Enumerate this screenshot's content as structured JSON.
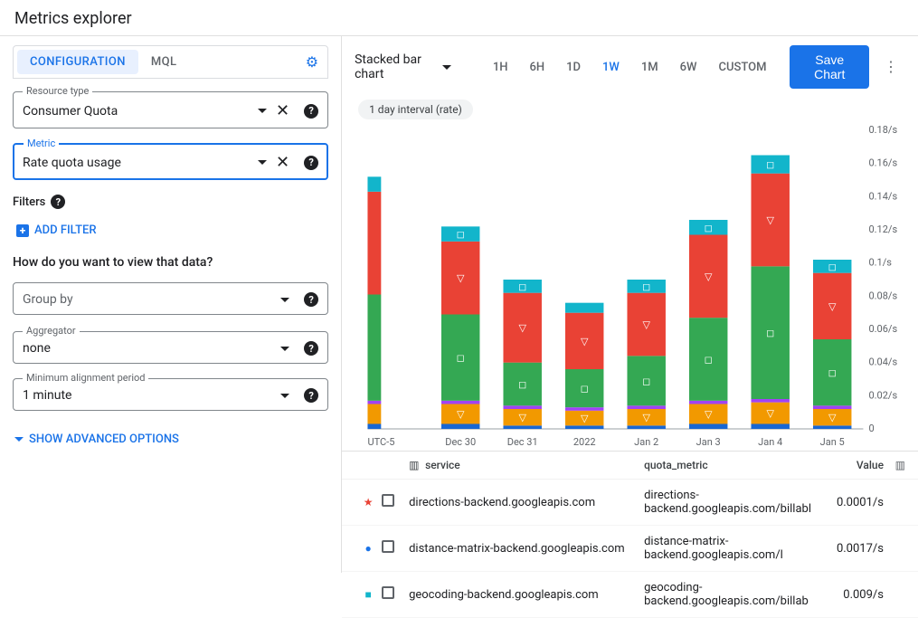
{
  "page_title": "Metrics explorer",
  "tabs": {
    "configuration": "CONFIGURATION",
    "mql": "MQL"
  },
  "fields": {
    "resource_type": {
      "label": "Resource type",
      "value": "Consumer Quota"
    },
    "metric": {
      "label": "Metric",
      "value": "Rate quota usage"
    },
    "group_by": {
      "placeholder": "Group by"
    },
    "aggregator": {
      "label": "Aggregator",
      "value": "none"
    },
    "min_alignment": {
      "label": "Minimum alignment period",
      "value": "1 minute"
    }
  },
  "labels": {
    "filters": "Filters",
    "add_filter": "ADD FILTER",
    "view_question": "How do you want to view that data?",
    "show_advanced": "SHOW ADVANCED OPTIONS"
  },
  "toolbar": {
    "chart_type": "Stacked bar chart",
    "ranges": [
      "1H",
      "6H",
      "1D",
      "1W",
      "1M",
      "6W",
      "CUSTOM"
    ],
    "active_range": "1W",
    "save": "Save Chart"
  },
  "chart": {
    "interval_chip": "1 day interval (rate)",
    "type": "stacked-bar",
    "x_labels": [
      "UTC-5",
      "Dec 30",
      "Dec 31",
      "2022",
      "Jan 2",
      "Jan 3",
      "Jan 4",
      "Jan 5"
    ],
    "y_max": 0.18,
    "y_ticks": [
      "0",
      "0.02/s",
      "0.04/s",
      "0.06/s",
      "0.08/s",
      "0.1/s",
      "0.12/s",
      "0.14/s",
      "0.16/s",
      "0.18/s"
    ],
    "colors": {
      "dark_blue": "#1967d2",
      "orange": "#f29900",
      "purple": "#a142f4",
      "green": "#34a853",
      "red": "#e94235",
      "teal": "#12b5cb"
    },
    "series_colors": [
      "#1967d2",
      "#f29900",
      "#a142f4",
      "#34a853",
      "#e94235",
      "#12b5cb"
    ],
    "bars": [
      {
        "x": 0,
        "stacks": [
          0.003,
          0.012,
          0.002,
          0.064,
          0.062,
          0.009
        ],
        "partial": true
      },
      {
        "x": 1,
        "stacks": [
          0.003,
          0.012,
          0.002,
          0.052,
          0.044,
          0.009
        ]
      },
      {
        "x": 2,
        "stacks": [
          0.002,
          0.01,
          0.002,
          0.026,
          0.042,
          0.008
        ]
      },
      {
        "x": 3,
        "stacks": [
          0.002,
          0.009,
          0.002,
          0.023,
          0.034,
          0.006
        ]
      },
      {
        "x": 4,
        "stacks": [
          0.002,
          0.01,
          0.002,
          0.03,
          0.038,
          0.008
        ]
      },
      {
        "x": 5,
        "stacks": [
          0.003,
          0.012,
          0.002,
          0.05,
          0.05,
          0.009
        ]
      },
      {
        "x": 6,
        "stacks": [
          0.003,
          0.013,
          0.002,
          0.08,
          0.056,
          0.011
        ]
      },
      {
        "x": 7,
        "stacks": [
          0.002,
          0.01,
          0.002,
          0.04,
          0.04,
          0.008
        ]
      }
    ],
    "markers": [
      "▽",
      "◻",
      "▽",
      "◻",
      "▽",
      "◻"
    ]
  },
  "legend": {
    "cols": {
      "service": "service",
      "quota": "quota_metric",
      "value": "Value"
    },
    "rows": [
      {
        "marker": "★",
        "marker_color": "#e94235",
        "service": "directions-backend.googleapis.com",
        "quota": "directions-backend.googleapis.com/billabl",
        "value": "0.0001/s"
      },
      {
        "marker": "●",
        "marker_color": "#1a73e8",
        "service": "distance-matrix-backend.googleapis.com",
        "quota": "distance-matrix-backend.googleapis.com/l",
        "value": "0.0017/s"
      },
      {
        "marker": "■",
        "marker_color": "#12b5cb",
        "service": "geocoding-backend.googleapis.com",
        "quota": "geocoding-backend.googleapis.com/billab",
        "value": "0.009/s"
      }
    ]
  }
}
